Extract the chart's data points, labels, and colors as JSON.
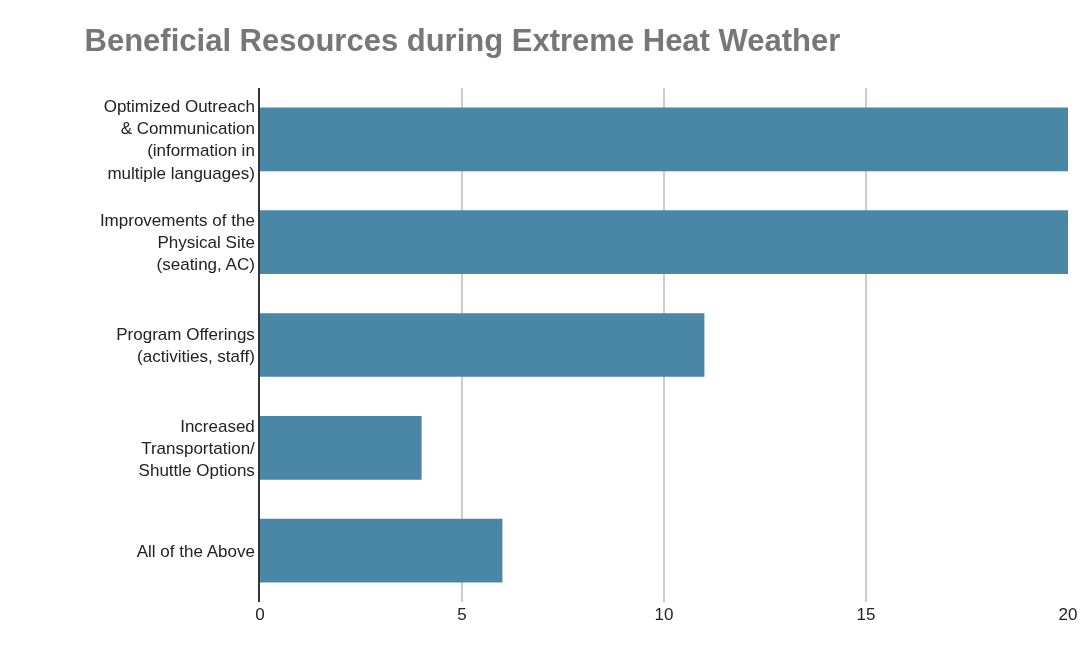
{
  "chart_data": {
    "type": "bar",
    "orientation": "horizontal",
    "title": "Beneficial Resources during Extreme Heat Weather",
    "categories": [
      "Optimized Outreach\n& Communication\n(information in\nmultiple languages)",
      "Improvements of the\nPhysical Site\n(seating, AC)",
      "Program Offerings\n(activities, staff)",
      "Increased\nTransportation/\nShuttle Options",
      "All of the Above"
    ],
    "values": [
      20,
      20,
      11,
      4,
      6
    ],
    "color": "#4a87a6",
    "xlim": [
      0,
      20
    ],
    "xticks": [
      0,
      5,
      10,
      15,
      20
    ],
    "grid": "x",
    "legend": false
  }
}
